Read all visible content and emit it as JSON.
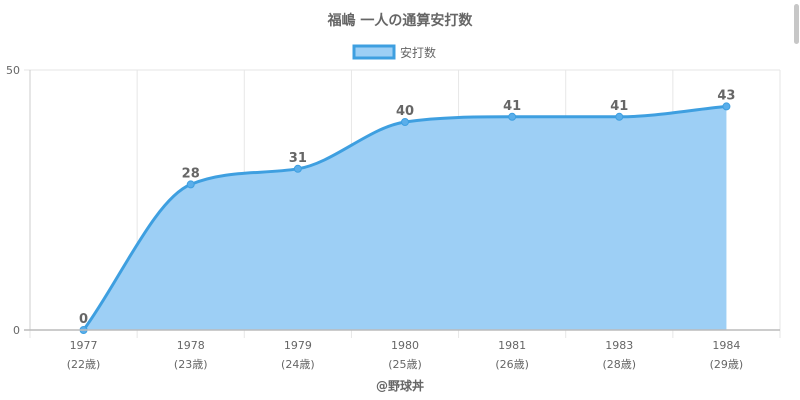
{
  "chart_data": {
    "type": "area",
    "title": "福嶋 一人の通算安打数",
    "legend": {
      "position": "top",
      "label": "安打数"
    },
    "x": [
      "1977",
      "1978",
      "1979",
      "1980",
      "1981",
      "1983",
      "1984"
    ],
    "x_sub": [
      "(22歳)",
      "(23歳)",
      "(24歳)",
      "(25歳)",
      "(26歳)",
      "(28歳)",
      "(29歳)"
    ],
    "series": [
      {
        "name": "安打数",
        "values": [
          0,
          28,
          31,
          40,
          41,
          41,
          43
        ]
      }
    ],
    "ylim": [
      0,
      50
    ],
    "yticks": [
      "0",
      "50"
    ],
    "grid": true,
    "colors": {
      "line": "#3e9fe0",
      "fill": "#9dcff5",
      "point": "#5aaeea"
    }
  },
  "credit": "@野球丼"
}
